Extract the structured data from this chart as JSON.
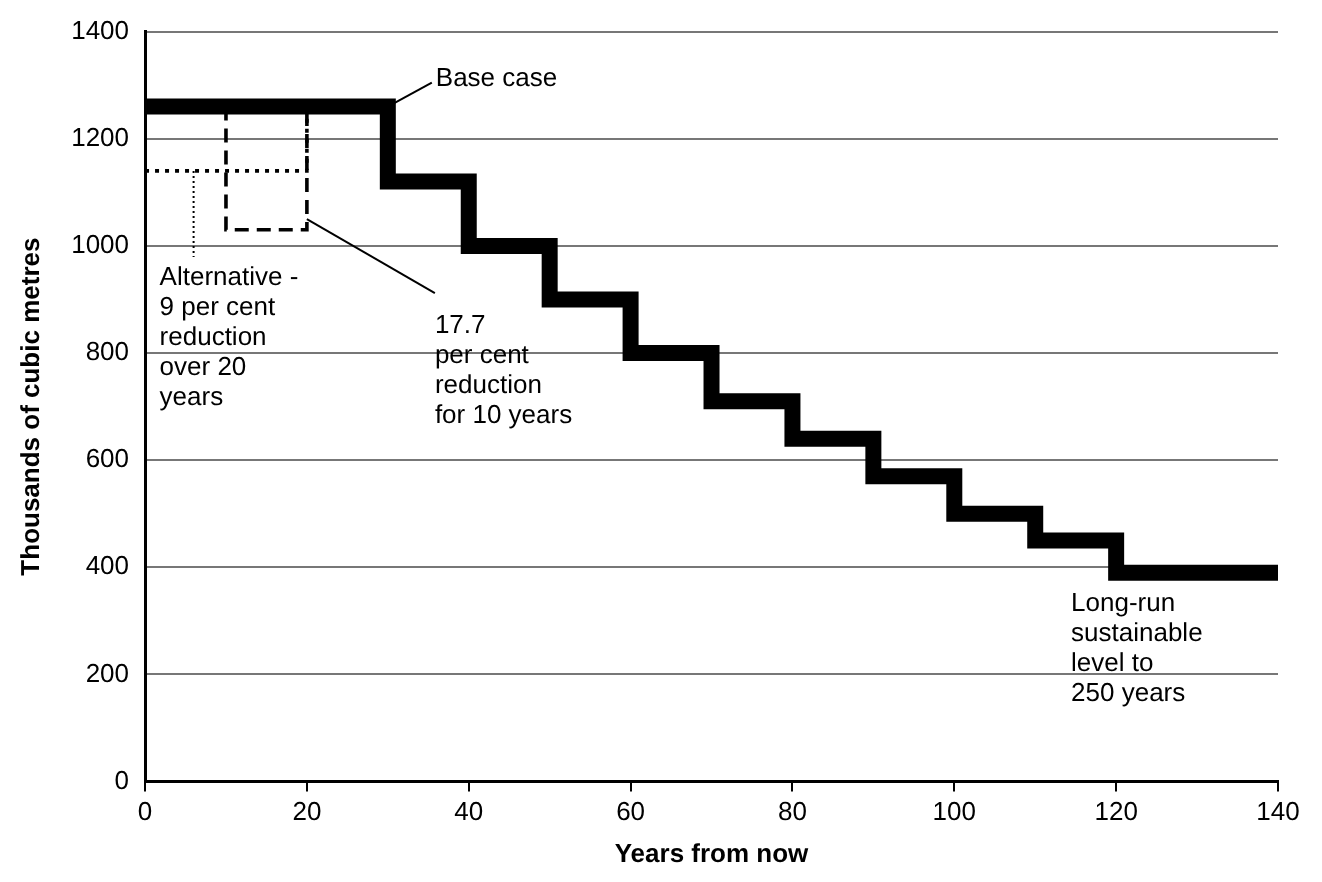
{
  "chart_data": {
    "type": "line",
    "xlabel": "Years from now",
    "ylabel": "Thousands of cubic metres",
    "xlim": [
      0,
      140
    ],
    "ylim": [
      0,
      1400
    ],
    "xticks": [
      0,
      20,
      40,
      60,
      80,
      100,
      120,
      140
    ],
    "yticks": [
      0,
      200,
      400,
      600,
      800,
      1000,
      1200,
      1400
    ],
    "grid": "y",
    "legend": false,
    "marker": "none",
    "series": [
      {
        "type": "step",
        "color": "#000000",
        "line_style": "solid",
        "x": [
          0,
          30,
          40,
          50,
          60,
          70,
          80,
          90,
          100,
          110,
          120,
          140
        ],
        "values": [
          1260,
          1120,
          1000,
          900,
          800,
          710,
          640,
          570,
          500,
          450,
          390,
          390
        ]
      },
      {
        "type": "line",
        "color": "#000000",
        "line_style": "dotted",
        "x": [
          0,
          20,
          20
        ],
        "values": [
          1140,
          1140,
          1260
        ]
      },
      {
        "type": "line",
        "color": "#000000",
        "line_style": "dashed",
        "x": [
          10,
          10,
          20,
          20
        ],
        "values": [
          1260,
          1030,
          1030,
          1260
        ]
      }
    ],
    "annotations": [
      {
        "text": "Base case",
        "x": 30,
        "y": 1260
      },
      {
        "text": "Alternative -\n9 per cent\nreduction\nover 20\nyears",
        "x": 6,
        "y": 1140
      },
      {
        "text": "17.7\nper cent\nreduction\nfor 10 years",
        "x": 20,
        "y": 1050
      },
      {
        "text": "Long-run\nsustainable\nlevel to\n250 years",
        "x": 130,
        "y": 390
      }
    ]
  }
}
